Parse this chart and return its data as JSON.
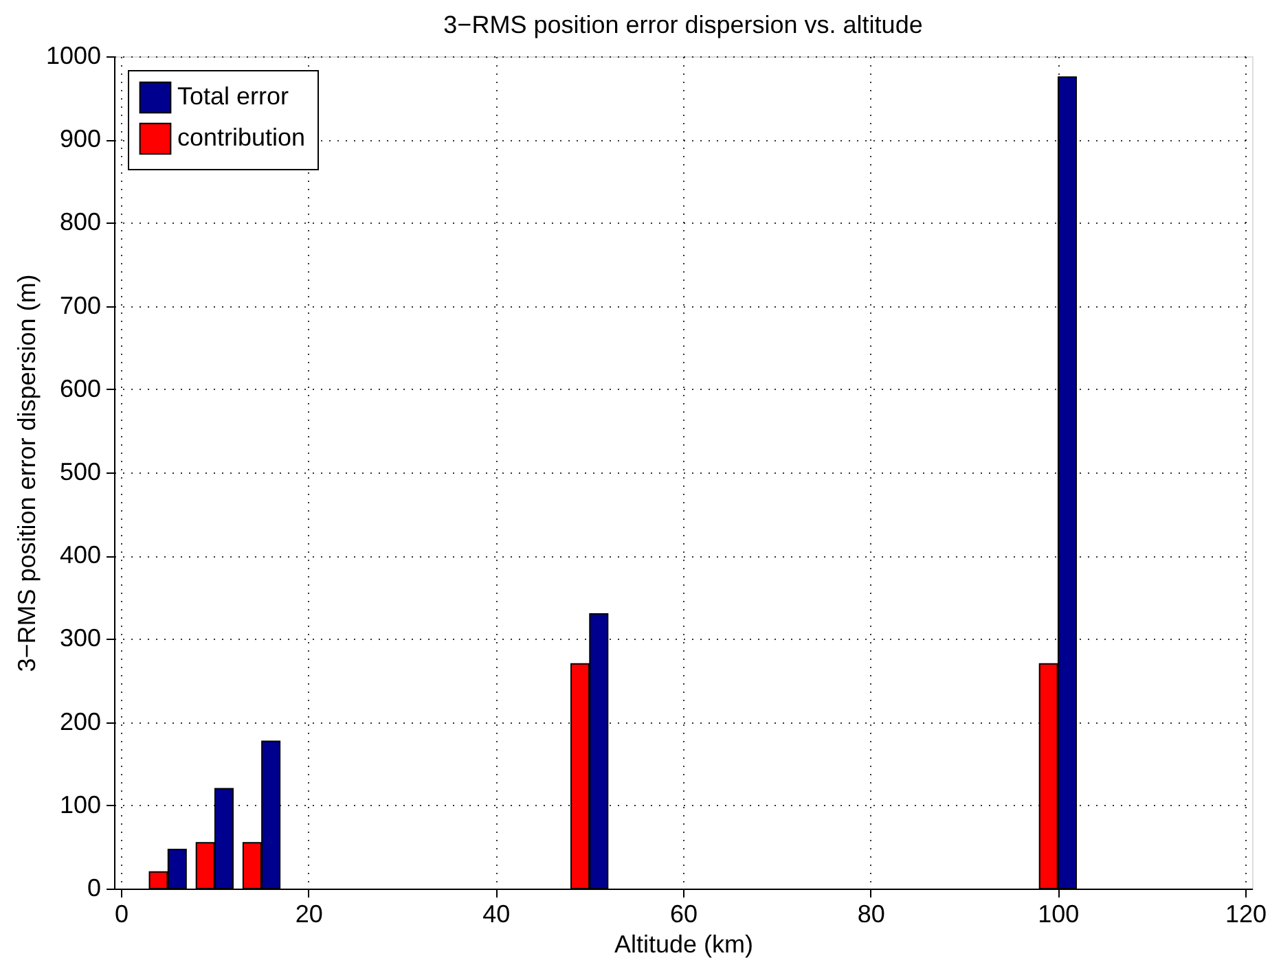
{
  "chart_data": {
    "type": "bar",
    "title": "3−RMS position error dispersion vs. altitude",
    "xlabel": "Altitude (km)",
    "ylabel": "3−RMS position error dispersion (m)",
    "series": [
      {
        "name": "Total error",
        "color": "#00008f",
        "x": [
          6,
          11,
          16,
          51,
          101
        ],
        "values": [
          47,
          120,
          177,
          330,
          975
        ]
      },
      {
        "name": "contribution",
        "color": "#ff0000",
        "x": [
          4,
          9,
          14,
          49,
          99
        ],
        "values": [
          20,
          55,
          55,
          270,
          270
        ]
      }
    ],
    "xlim": [
      0,
      120
    ],
    "xticks": [
      0,
      20,
      40,
      60,
      80,
      100,
      120
    ],
    "ylim": [
      0,
      1000
    ],
    "yticks": [
      0,
      100,
      200,
      300,
      400,
      500,
      600,
      700,
      800,
      900,
      1000
    ],
    "grid": true,
    "legend": "top left"
  }
}
